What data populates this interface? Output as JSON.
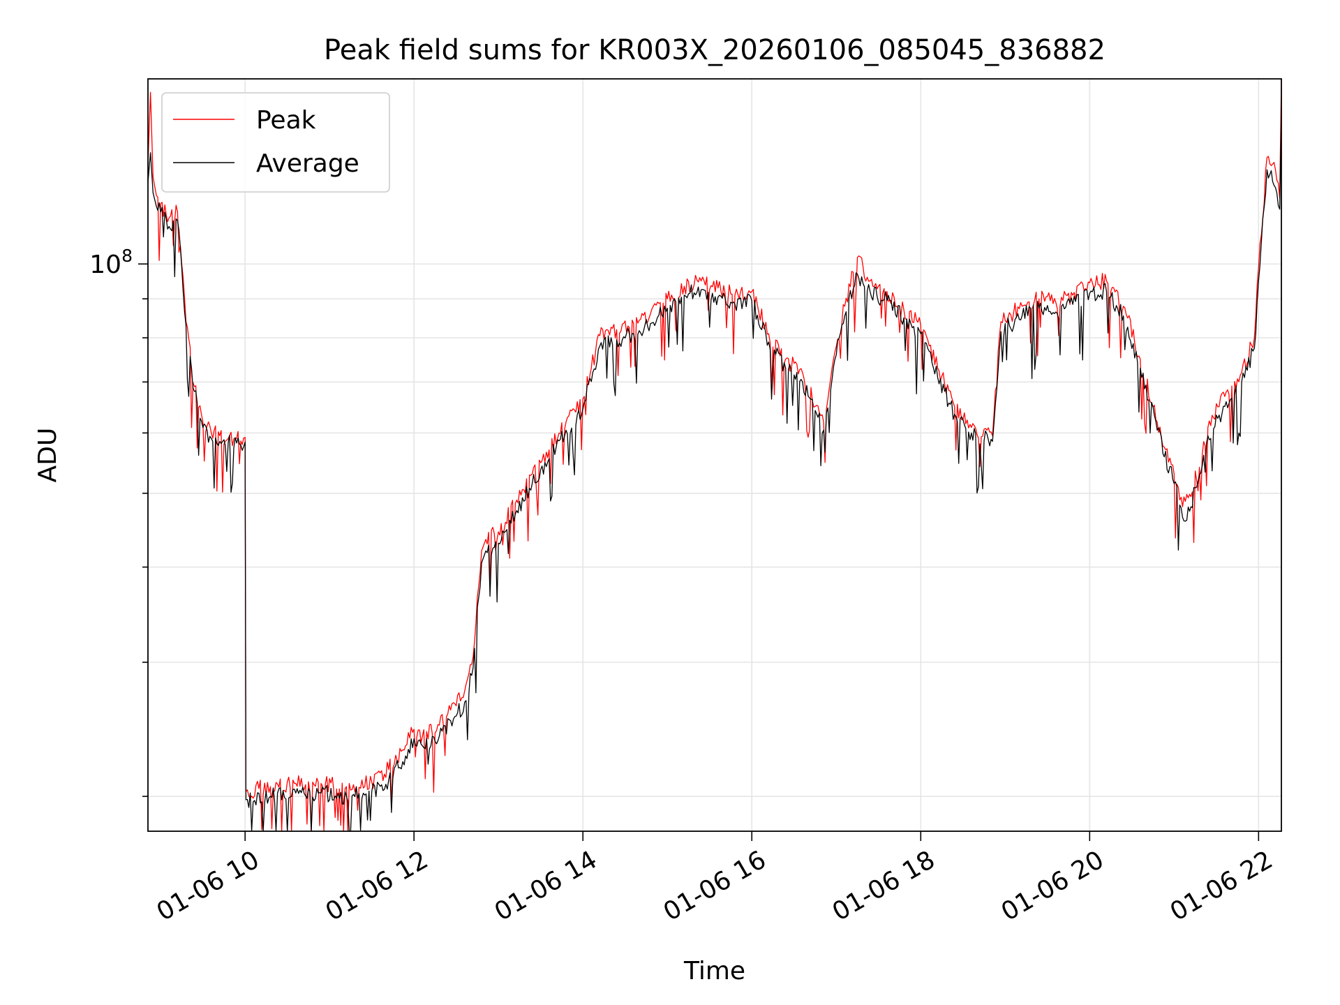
{
  "chart_data": {
    "type": "line",
    "title": "Peak field sums for KR003X_20260106_085045_836882",
    "xlabel": "Time",
    "ylabel": "ADU",
    "y_scale": "log",
    "grid": true,
    "legend_position": "top-left",
    "x_tick_labels": [
      "01-06 10",
      "01-06 12",
      "01-06 14",
      "01-06 16",
      "01-06 18",
      "01-06 20",
      "01-06 22"
    ],
    "x_ticks_hours": [
      10,
      12,
      14,
      16,
      18,
      20,
      22
    ],
    "xlim_hours": [
      8.85,
      22.27
    ],
    "y_tick_labels": [
      "10^8"
    ],
    "ylim": [
      18000000,
      175000000
    ],
    "colors": {
      "peak": "#ff0000",
      "average": "#000000"
    },
    "series": [
      {
        "name": "Peak",
        "x_hours": [
          8.85,
          8.88,
          8.91,
          8.95,
          9.0,
          9.1,
          9.2,
          9.25,
          9.3,
          9.4,
          9.5,
          9.6,
          9.7,
          9.8,
          9.9,
          10.0,
          10.01,
          10.3,
          10.6,
          10.9,
          11.2,
          11.5,
          11.7,
          11.9,
          12.0,
          12.1,
          12.3,
          12.5,
          12.6,
          12.7,
          12.8,
          12.85,
          13.0,
          13.2,
          13.4,
          13.6,
          13.8,
          14.0,
          14.2,
          14.4,
          14.6,
          14.8,
          15.0,
          15.2,
          15.4,
          15.6,
          15.8,
          16.0,
          16.2,
          16.4,
          16.6,
          16.85,
          17.0,
          17.1,
          17.25,
          17.4,
          17.6,
          17.8,
          18.0,
          18.2,
          18.4,
          18.6,
          18.85,
          18.95,
          19.2,
          19.4,
          19.6,
          19.8,
          20.0,
          20.2,
          20.4,
          20.6,
          20.8,
          21.0,
          21.1,
          21.2,
          21.4,
          21.6,
          21.8,
          21.95,
          22.0,
          22.1,
          22.2,
          22.25,
          22.27
        ],
        "values": [
          135000000,
          168000000,
          130000000,
          123000000,
          120000000,
          115000000,
          117000000,
          100000000,
          84000000,
          69000000,
          62000000,
          60000000,
          59500000,
          59000000,
          59000000,
          59200000,
          20300000,
          20600000,
          20800000,
          20800000,
          20600000,
          20900000,
          21700000,
          23300000,
          24500000,
          24000000,
          24800000,
          26300000,
          27500000,
          30500000,
          42000000,
          43500000,
          44500000,
          48500000,
          53000000,
          57000000,
          62000000,
          66500000,
          80500000,
          82000000,
          83500000,
          86000000,
          90000000,
          93500000,
          95000000,
          93000000,
          91000000,
          92000000,
          81000000,
          75000000,
          72000000,
          62000000,
          78000000,
          88000000,
          102000000,
          95000000,
          92000000,
          87000000,
          83000000,
          73000000,
          65000000,
          61000000,
          59500000,
          84000000,
          88000000,
          90000000,
          89000000,
          91000000,
          94500000,
          95000000,
          88000000,
          75000000,
          62000000,
          53000000,
          48000000,
          49500000,
          61000000,
          67000000,
          72000000,
          80000000,
          99000000,
          138000000,
          133000000,
          122000000,
          175000000
        ]
      },
      {
        "name": "Average",
        "x_hours": [
          8.85,
          8.88,
          8.91,
          8.95,
          9.0,
          9.1,
          9.2,
          9.25,
          9.3,
          9.4,
          9.5,
          9.6,
          9.7,
          9.8,
          9.9,
          10.0,
          10.01,
          10.3,
          10.6,
          10.9,
          11.2,
          11.5,
          11.7,
          11.9,
          12.0,
          12.1,
          12.3,
          12.5,
          12.6,
          12.7,
          12.8,
          12.85,
          13.0,
          13.2,
          13.4,
          13.6,
          13.8,
          14.0,
          14.2,
          14.4,
          14.6,
          14.8,
          15.0,
          15.2,
          15.4,
          15.6,
          15.8,
          16.0,
          16.2,
          16.4,
          16.6,
          16.85,
          17.0,
          17.1,
          17.25,
          17.4,
          17.6,
          17.8,
          18.0,
          18.2,
          18.4,
          18.6,
          18.85,
          18.95,
          19.2,
          19.4,
          19.6,
          19.8,
          20.0,
          20.2,
          20.4,
          20.6,
          20.8,
          21.0,
          21.1,
          21.2,
          21.4,
          21.6,
          21.8,
          21.95,
          22.0,
          22.1,
          22.2,
          22.25,
          22.27
        ],
        "values": [
          128000000,
          140000000,
          124000000,
          119000000,
          117000000,
          112000000,
          114000000,
          99000000,
          83000000,
          68000000,
          61000000,
          59000000,
          58500000,
          58300000,
          58200000,
          58400000,
          19800000,
          20000000,
          20200000,
          20200000,
          20000000,
          20300000,
          21000000,
          22600000,
          23800000,
          23300000,
          24000000,
          25500000,
          26600000,
          29500000,
          40500000,
          42000000,
          43000000,
          47000000,
          51500000,
          55500000,
          60500000,
          64500000,
          78000000,
          79500000,
          81000000,
          83500000,
          87500000,
          91000000,
          92500000,
          90500000,
          88500000,
          89500000,
          79000000,
          73000000,
          70000000,
          60500000,
          76000000,
          85500000,
          97000000,
          92000000,
          89500000,
          85000000,
          81000000,
          71000000,
          63500000,
          60000000,
          58500000,
          81500000,
          85500000,
          87500000,
          86500000,
          88500000,
          91500000,
          92000000,
          85500000,
          73000000,
          60500000,
          51500000,
          46500000,
          48000000,
          59500000,
          65000000,
          70000000,
          77500000,
          95000000,
          133000000,
          126000000,
          118000000,
          160000000
        ]
      }
    ]
  }
}
